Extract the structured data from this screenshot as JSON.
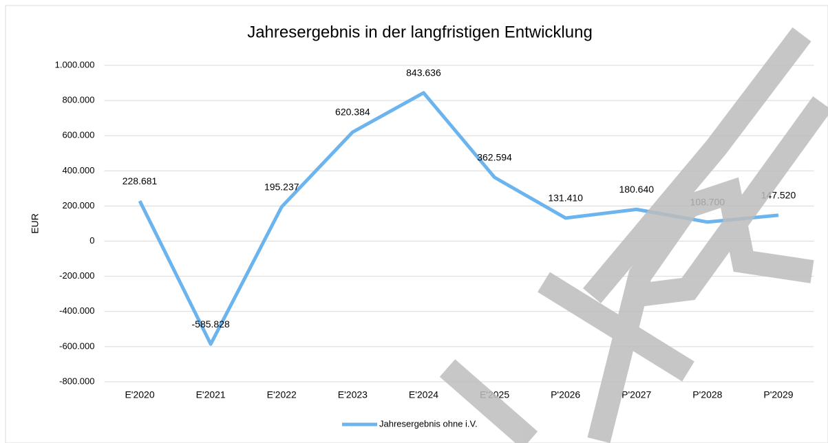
{
  "chart_data": {
    "type": "line",
    "title": "Jahresergebnis in der langfristigen Entwicklung",
    "y_label": "EUR",
    "categories": [
      "E'2020",
      "E'2021",
      "E'2022",
      "E'2023",
      "E'2024",
      "E'2025",
      "P'2026",
      "P'2027",
      "P'2028",
      "P'2029"
    ],
    "series": [
      {
        "name": "Jahresergebnis ohne i.V.",
        "color": "#6cb4ee",
        "values": [
          228681,
          -585828,
          195237,
          620384,
          843636,
          362594,
          131410,
          180640,
          108700,
          147520
        ],
        "value_labels": [
          "228.681",
          "-585.828",
          "195.237",
          "620.384",
          "843.636",
          "362.594",
          "131.410",
          "180.640",
          "108.700",
          "147.520"
        ]
      }
    ],
    "ylim": [
      -800000,
      1000000
    ],
    "yticks": [
      {
        "value": -800000,
        "label": "-800.000"
      },
      {
        "value": -600000,
        "label": "-600.000"
      },
      {
        "value": -400000,
        "label": "-400.000"
      },
      {
        "value": -200000,
        "label": "-200.000"
      },
      0,
      {
        "value": 200000,
        "label": "200.000"
      },
      {
        "value": 400000,
        "label": "400.000"
      },
      {
        "value": 600000,
        "label": "600.000"
      },
      {
        "value": 800000,
        "label": "800.000"
      },
      {
        "value": 1000000,
        "label": "1.000.000"
      }
    ],
    "grid": true,
    "legend": "bottom"
  }
}
